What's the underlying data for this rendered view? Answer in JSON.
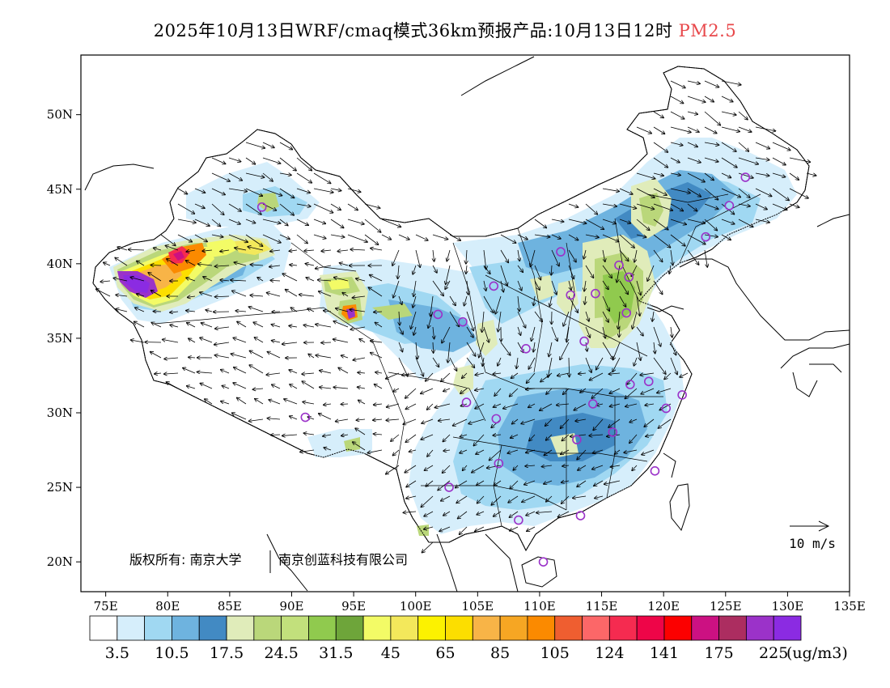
{
  "title": {
    "main": "2025年10月13日WRF/cmaq模式36km预报产品:10月13日12时",
    "pollutant": "PM2.5",
    "pollutant_color": "#e8474a"
  },
  "axes": {
    "lon_ticks": [
      "75E",
      "80E",
      "85E",
      "90E",
      "95E",
      "100E",
      "105E",
      "110E",
      "115E",
      "120E",
      "125E",
      "130E",
      "135E"
    ],
    "lat_ticks": [
      "50N",
      "45N",
      "40N",
      "35N",
      "30N",
      "25N",
      "20N"
    ],
    "lon_range": [
      73,
      135
    ],
    "lat_range": [
      18,
      54
    ]
  },
  "copyright": {
    "left": "版权所有: 南京大学",
    "right": "南京创蓝科技有限公司"
  },
  "wind_scale": {
    "label": "10 m/s"
  },
  "colorbar": {
    "colors": [
      "#ffffff",
      "#d6eefb",
      "#a0d8f2",
      "#6eb3df",
      "#428ac3",
      "#e0ecba",
      "#bad77a",
      "#c2e07c",
      "#90ca4e",
      "#6ea53a",
      "#f3fb66",
      "#f3e85b",
      "#fcf200",
      "#fcde00",
      "#f8b447",
      "#f6a623",
      "#fb8a00",
      "#ef5e30",
      "#fc6768",
      "#f52b50",
      "#ee0548",
      "#fc0000",
      "#cc1182",
      "#ac2d60",
      "#9b32c9",
      "#8b2be2"
    ],
    "labels": [
      "3.5",
      "10.5",
      "17.5",
      "24.5",
      "31.5",
      "45",
      "65",
      "85",
      "105",
      "124",
      "141",
      "175",
      "225"
    ],
    "unit": "(ug/m3)"
  },
  "cities": [
    {
      "lon": 87.6,
      "lat": 43.8
    },
    {
      "lon": 126.6,
      "lat": 45.8
    },
    {
      "lon": 125.3,
      "lat": 43.9
    },
    {
      "lon": 123.4,
      "lat": 41.8
    },
    {
      "lon": 111.7,
      "lat": 40.8
    },
    {
      "lon": 116.4,
      "lat": 39.9
    },
    {
      "lon": 117.2,
      "lat": 39.1
    },
    {
      "lon": 114.5,
      "lat": 38.0
    },
    {
      "lon": 112.5,
      "lat": 37.9
    },
    {
      "lon": 117.0,
      "lat": 36.7
    },
    {
      "lon": 113.6,
      "lat": 34.8
    },
    {
      "lon": 108.9,
      "lat": 34.3
    },
    {
      "lon": 106.3,
      "lat": 38.5
    },
    {
      "lon": 103.8,
      "lat": 36.1
    },
    {
      "lon": 101.8,
      "lat": 36.6
    },
    {
      "lon": 91.1,
      "lat": 29.7
    },
    {
      "lon": 104.1,
      "lat": 30.7
    },
    {
      "lon": 106.5,
      "lat": 29.6
    },
    {
      "lon": 114.3,
      "lat": 30.6
    },
    {
      "lon": 117.3,
      "lat": 31.9
    },
    {
      "lon": 118.8,
      "lat": 32.1
    },
    {
      "lon": 121.5,
      "lat": 31.2
    },
    {
      "lon": 120.2,
      "lat": 30.3
    },
    {
      "lon": 115.9,
      "lat": 28.7
    },
    {
      "lon": 113.0,
      "lat": 28.2
    },
    {
      "lon": 106.7,
      "lat": 26.6
    },
    {
      "lon": 102.7,
      "lat": 25.0
    },
    {
      "lon": 108.3,
      "lat": 22.8
    },
    {
      "lon": 113.3,
      "lat": 23.1
    },
    {
      "lon": 119.3,
      "lat": 26.1
    },
    {
      "lon": 110.3,
      "lat": 20.0
    }
  ]
}
